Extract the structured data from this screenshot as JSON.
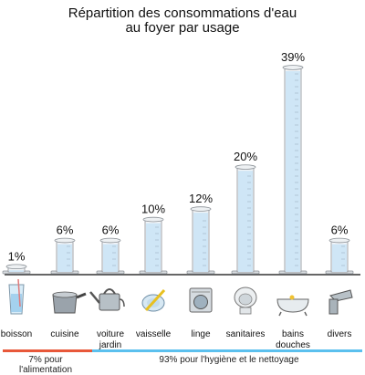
{
  "chart_data": {
    "type": "bar",
    "title_line1": "Répartition des consommations d'eau",
    "title_line2": "au foyer par usage",
    "categories": [
      {
        "label": [
          "boisson"
        ],
        "icon": "glass-icon"
      },
      {
        "label": [
          "cuisine"
        ],
        "icon": "cooking-pot-icon"
      },
      {
        "label": [
          "voiture",
          "jardin"
        ],
        "icon": "watering-can-icon"
      },
      {
        "label": [
          "vaisselle"
        ],
        "icon": "dish-and-sponge-icon"
      },
      {
        "label": [
          "linge"
        ],
        "icon": "washing-machine-icon"
      },
      {
        "label": [
          "sanitaires"
        ],
        "icon": "toilet-icon"
      },
      {
        "label": [
          "bains",
          "douches"
        ],
        "icon": "bathtub-icon"
      },
      {
        "label": [
          "divers"
        ],
        "icon": "faucet-icon"
      }
    ],
    "values": [
      1,
      6,
      6,
      10,
      12,
      20,
      39,
      6
    ],
    "value_labels": [
      "1%",
      "6%",
      "6%",
      "10%",
      "12%",
      "20%",
      "39%",
      "6%"
    ],
    "ylim": [
      0,
      39
    ],
    "groups": [
      {
        "label_lines": [
          "7% pour",
          "l'alimentation"
        ],
        "color": "#e8583a"
      },
      {
        "label_lines": [
          "93% pour l'hygiène et le nettoyage"
        ],
        "color": "#5bc0ee"
      }
    ],
    "colors": {
      "water": "#cfe6f6",
      "glass": "#f4f6f8",
      "outline": "#8a9096"
    }
  }
}
